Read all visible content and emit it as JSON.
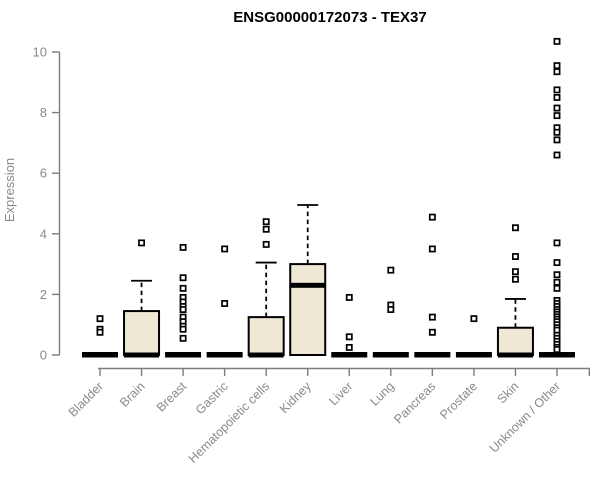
{
  "chart_data": {
    "type": "boxplot",
    "title": "ENSG00000172073 - TEX37",
    "ylabel": "Expression",
    "xlabel": "",
    "ylim": [
      0,
      10
    ],
    "yticks": [
      0,
      2,
      4,
      6,
      8,
      10
    ],
    "grid": false,
    "legend": "none",
    "x_label_rotation_deg": 45,
    "categories": [
      "Bladder",
      "Brain",
      "Breast",
      "Gastric",
      "Hematopoietic cells",
      "Kidney",
      "Liver",
      "Lung",
      "Pancreas",
      "Prostate",
      "Skin",
      "Unknown / Other"
    ],
    "series": [
      {
        "category": "Bladder",
        "q1": 0,
        "median": 0,
        "q3": 0,
        "whisker_low": 0,
        "whisker_high": 0,
        "outliers": [
          1.2,
          0.85,
          0.75
        ]
      },
      {
        "category": "Brain",
        "q1": 0,
        "median": 0,
        "q3": 1.45,
        "whisker_low": 0,
        "whisker_high": 2.45,
        "outliers": [
          3.7
        ]
      },
      {
        "category": "Breast",
        "q1": 0,
        "median": 0,
        "q3": 0,
        "whisker_low": 0,
        "whisker_high": 0,
        "outliers": [
          3.55,
          2.55,
          2.2,
          1.9,
          1.75,
          1.6,
          1.5,
          1.25,
          1.1,
          0.95,
          0.85,
          0.55
        ]
      },
      {
        "category": "Gastric",
        "q1": 0,
        "median": 0,
        "q3": 0,
        "whisker_low": 0,
        "whisker_high": 0,
        "outliers": [
          3.5,
          1.7
        ]
      },
      {
        "category": "Hematopoietic cells",
        "q1": 0,
        "median": 0,
        "q3": 1.25,
        "whisker_low": 0,
        "whisker_high": 3.05,
        "outliers": [
          4.4,
          4.15,
          3.65
        ]
      },
      {
        "category": "Kidney",
        "q1": 0,
        "median": 2.3,
        "q3": 3.0,
        "whisker_low": 0,
        "whisker_high": 4.95,
        "outliers": []
      },
      {
        "category": "Liver",
        "q1": 0,
        "median": 0,
        "q3": 0,
        "whisker_low": 0,
        "whisker_high": 0,
        "outliers": [
          1.9,
          0.6,
          0.25
        ]
      },
      {
        "category": "Lung",
        "q1": 0,
        "median": 0,
        "q3": 0,
        "whisker_low": 0,
        "whisker_high": 0,
        "outliers": [
          2.8,
          1.65,
          1.5
        ]
      },
      {
        "category": "Pancreas",
        "q1": 0,
        "median": 0,
        "q3": 0,
        "whisker_low": 0,
        "whisker_high": 0,
        "outliers": [
          4.55,
          3.5,
          1.25,
          0.75
        ]
      },
      {
        "category": "Prostate",
        "q1": 0,
        "median": 0,
        "q3": 0,
        "whisker_low": 0,
        "whisker_high": 0,
        "outliers": [
          1.2
        ]
      },
      {
        "category": "Skin",
        "q1": 0,
        "median": 0,
        "q3": 0.9,
        "whisker_low": 0,
        "whisker_high": 1.85,
        "outliers": [
          4.2,
          3.25,
          2.75,
          2.5
        ]
      },
      {
        "category": "Unknown / Other",
        "q1": 0,
        "median": 0,
        "q3": 0,
        "whisker_low": 0,
        "whisker_high": 0,
        "outliers": [
          10.35,
          9.55,
          9.35,
          8.75,
          8.5,
          8.15,
          7.9,
          7.5,
          7.35,
          7.1,
          6.6,
          3.7,
          3.05,
          2.65,
          2.4,
          2.2,
          1.8,
          1.7,
          1.6,
          1.5,
          1.42,
          1.34,
          1.26,
          1.18,
          1.1,
          1.0,
          0.9,
          0.82,
          0.65,
          0.55,
          0.45,
          0.35,
          0.25,
          0.18
        ]
      }
    ],
    "colors": {
      "box_fill": "#EEE8D5",
      "box_stroke": "#000000",
      "median": "#000000",
      "whisker": "#000000",
      "outlier_fill": "#ffffff",
      "outlier_stroke": "#000000",
      "axis": "#7d7d7d",
      "tick_label": "#8a8a8a",
      "title": "#000000",
      "background": "#ffffff"
    }
  }
}
